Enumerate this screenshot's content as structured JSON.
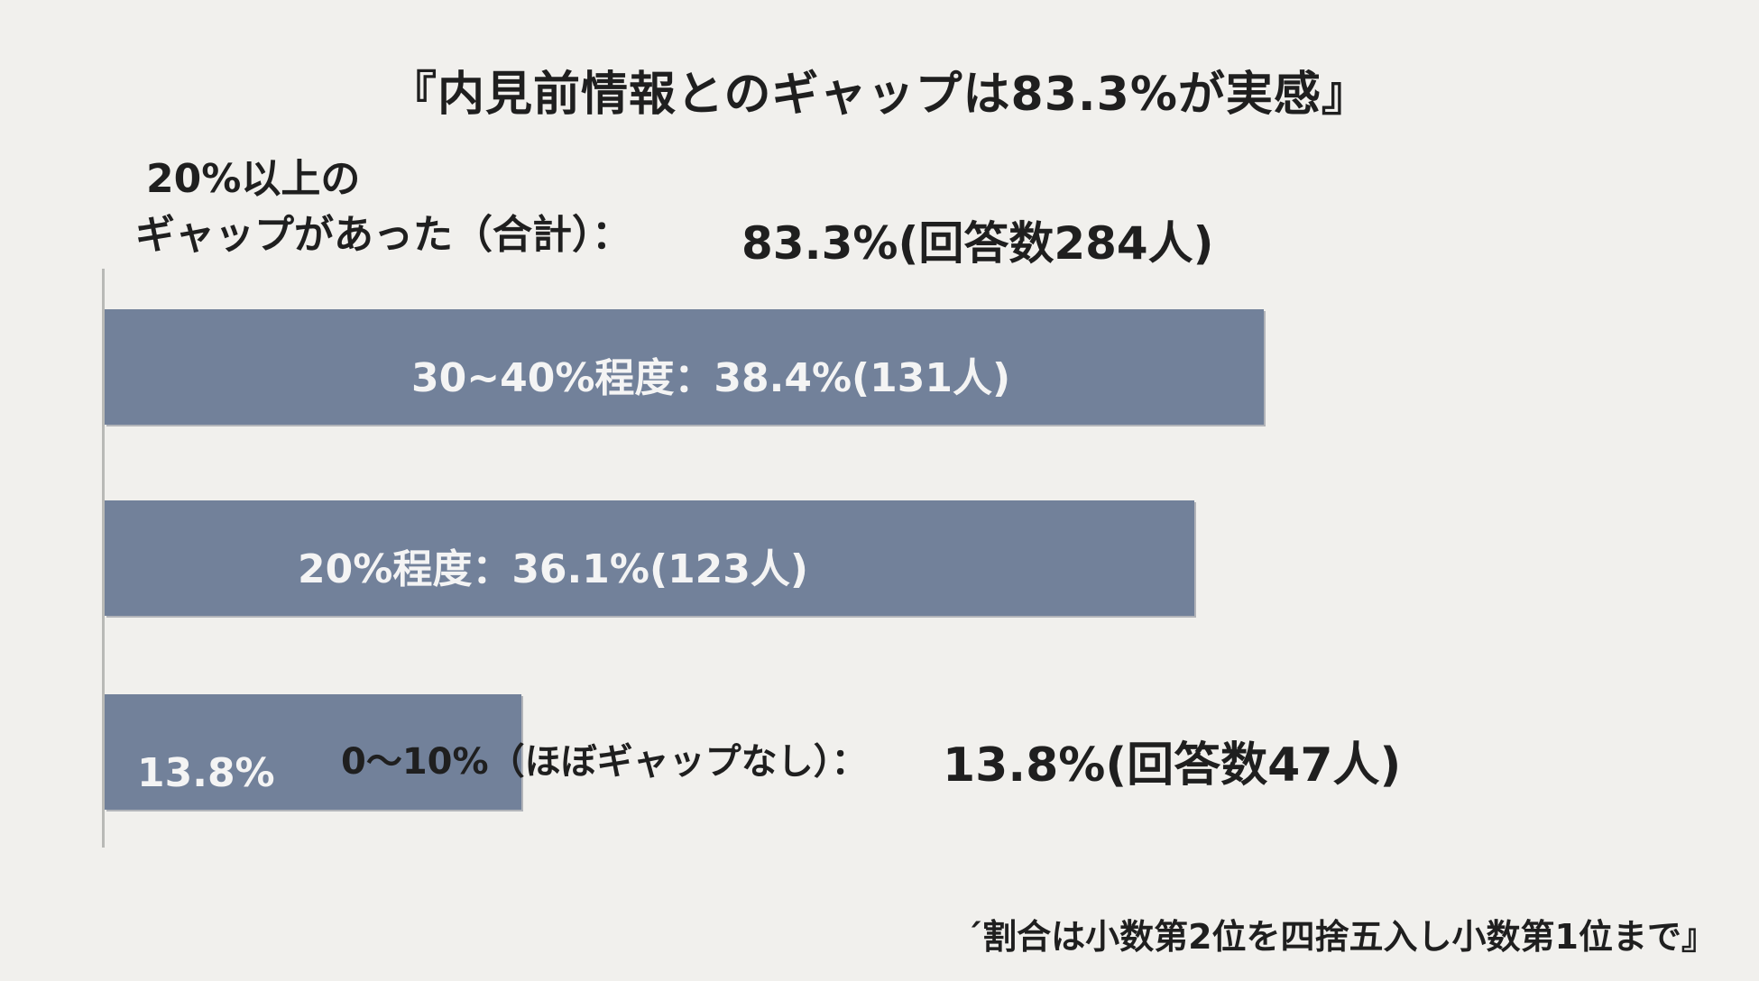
{
  "title": "『内見前情報とのギャップは83.3%が実感』",
  "summary": {
    "label_line1": "20%以上の",
    "label_line2": "ギャップがあった（合計）：",
    "value": "83.3%(回答数284人)"
  },
  "chart_data": {
    "type": "bar",
    "orientation": "horizontal",
    "categories": [
      "30~40%程度",
      "20%程度",
      "0〜10%（ほぼギャップなし）"
    ],
    "values": [
      38.4,
      36.1,
      13.8
    ],
    "counts": [
      131,
      123,
      47
    ],
    "unit": "%",
    "xlim": [
      0,
      45
    ],
    "bar_labels": [
      "30~40%程度：38.4%(131人)",
      "20%程度：36.1%(123人)",
      "13.8%"
    ],
    "bar3_side_label": "0〜10%（ほぼギャップなし）：",
    "bar3_side_value": "13.8%(回答数47人)",
    "colors": {
      "bar": "#72819a",
      "bar_text": "#f4f4f4",
      "background": "#f1f0ed"
    }
  },
  "footnote": "´割合は小数第2位を四捨五入し小数第1位まで』"
}
